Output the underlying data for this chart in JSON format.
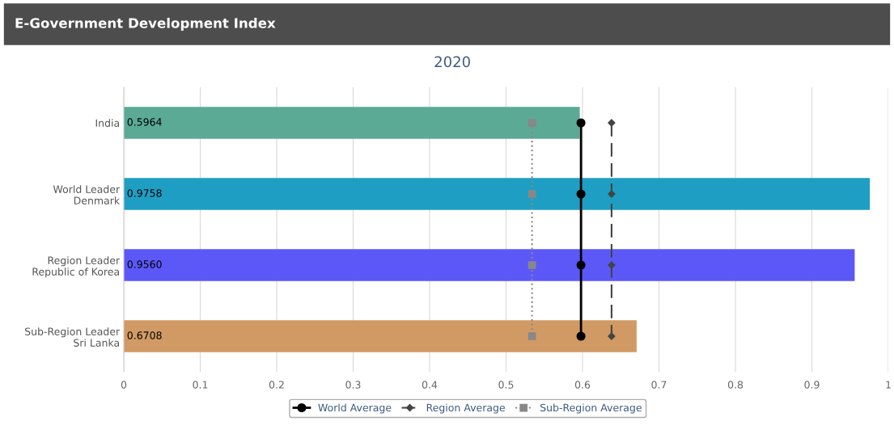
{
  "chart_data": {
    "type": "bar",
    "orientation": "horizontal",
    "title": "E-Government Development Index",
    "subtitle": "2020",
    "categories": [
      "India",
      "World Leader\nDenmark",
      "Region Leader\nRepublic of Korea",
      "Sub-Region Leader\nSri Lanka"
    ],
    "series": [
      {
        "type": "bar",
        "colors": [
          "#5aaa96",
          "#1f9ec4",
          "#5c58f8",
          "#d19a64"
        ],
        "values": [
          0.5964,
          0.9758,
          0.956,
          0.6708
        ],
        "value_labels": [
          "0.5964",
          "0.9758",
          "0.9560",
          "0.6708"
        ]
      },
      {
        "type": "line",
        "name": "World Average",
        "color": "#000000",
        "values": [
          0.598,
          0.598,
          0.598,
          0.598
        ],
        "marker": "circle",
        "line_style": "solid"
      },
      {
        "type": "line",
        "name": "Region Average",
        "color": "#444444",
        "values": [
          0.638,
          0.638,
          0.638,
          0.638
        ],
        "marker": "diamond",
        "line_style": "dashed"
      },
      {
        "type": "line",
        "name": "Sub-Region Average",
        "color": "#888888",
        "values": [
          0.534,
          0.534,
          0.534,
          0.534
        ],
        "marker": "square",
        "line_style": "dotted"
      }
    ],
    "xlim": [
      0,
      1
    ],
    "xticks": [
      0,
      0.1,
      0.2,
      0.3,
      0.4,
      0.5,
      0.6,
      0.7,
      0.8,
      0.9,
      1
    ],
    "grid": "x",
    "legend": "bottom"
  }
}
